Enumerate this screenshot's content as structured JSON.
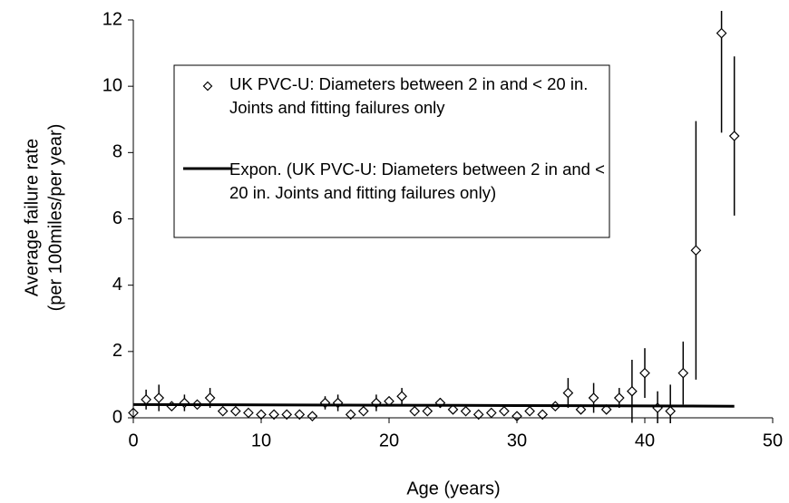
{
  "chart_data": {
    "type": "scatter",
    "xlabel": "Age (years)",
    "ylabel": [
      "Average failure rate",
      "(per 100miles/per year)"
    ],
    "xlim": [
      0,
      50
    ],
    "xticks": [
      0,
      10,
      20,
      30,
      40,
      50
    ],
    "ylim": [
      0,
      12
    ],
    "yticks": [
      0,
      2,
      4,
      6,
      8,
      10,
      12
    ],
    "grid": false,
    "legend": "upper left",
    "series": [
      {
        "name": "UK PVC-U: Diameters between 2 in and < 20 in.  Joints and fitting failures only",
        "type": "scatter",
        "color": "#000000",
        "x": [
          0,
          1,
          2,
          3,
          4,
          5,
          6,
          7,
          8,
          9,
          10,
          11,
          12,
          13,
          14,
          15,
          16,
          17,
          18,
          19,
          20,
          21,
          22,
          23,
          24,
          25,
          26,
          27,
          28,
          29,
          30,
          31,
          32,
          33,
          34,
          35,
          36,
          37,
          38,
          39,
          40,
          41,
          42,
          43,
          44,
          46,
          47
        ],
        "values": [
          0.15,
          0.55,
          0.6,
          0.35,
          0.45,
          0.4,
          0.6,
          0.2,
          0.2,
          0.15,
          0.1,
          0.1,
          0.1,
          0.1,
          0.05,
          0.45,
          0.45,
          0.1,
          0.2,
          0.45,
          0.5,
          0.65,
          0.2,
          0.2,
          0.45,
          0.25,
          0.2,
          0.1,
          0.15,
          0.2,
          0.05,
          0.2,
          0.1,
          0.35,
          0.75,
          0.25,
          0.6,
          0.25,
          0.6,
          0.8,
          1.35,
          0.3,
          0.2,
          1.35,
          5.05,
          11.6,
          8.5
        ],
        "errors": [
          null,
          0.3,
          0.4,
          null,
          0.25,
          null,
          0.3,
          null,
          null,
          null,
          null,
          null,
          null,
          null,
          null,
          0.2,
          0.25,
          null,
          null,
          0.25,
          null,
          0.25,
          null,
          null,
          0.15,
          null,
          null,
          null,
          null,
          null,
          null,
          null,
          null,
          null,
          0.45,
          null,
          0.45,
          null,
          0.3,
          0.95,
          0.75,
          0.5,
          0.8,
          0.95,
          3.9,
          3.0,
          2.4
        ]
      },
      {
        "name": "Expon. (UK PVC-U: Diameters between 2 in and < 20 in.  Joints and fitting failures only)",
        "type": "line",
        "color": "#000000",
        "x": [
          0,
          10,
          20,
          30,
          40,
          47
        ],
        "values": [
          0.4,
          0.39,
          0.38,
          0.37,
          0.36,
          0.35
        ]
      }
    ]
  }
}
